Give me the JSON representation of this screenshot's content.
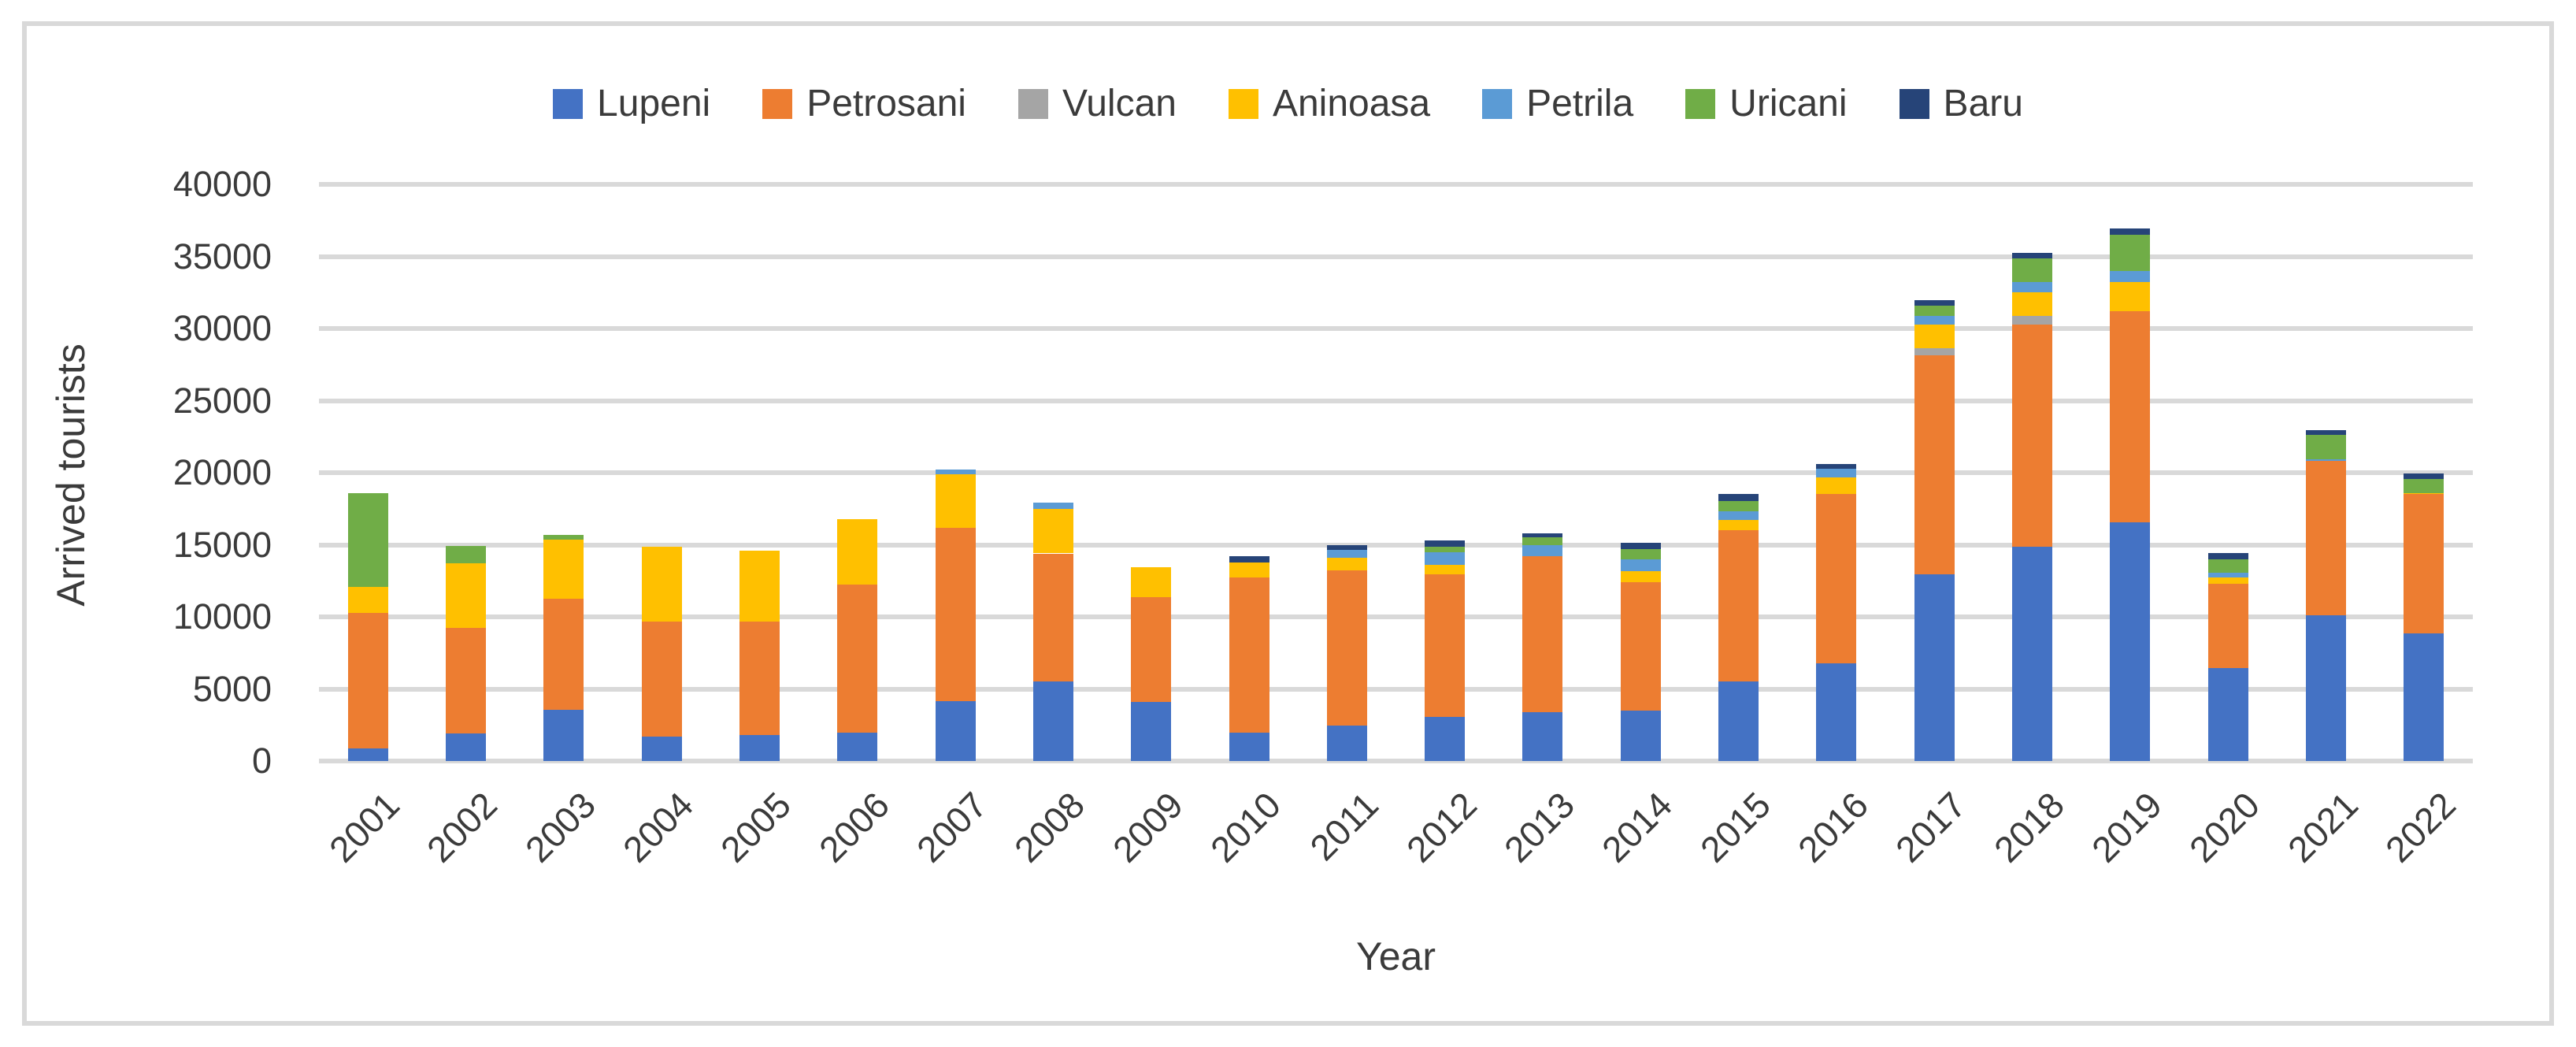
{
  "chart_data": {
    "type": "bar",
    "stacked": true,
    "title": "",
    "xlabel": "Year",
    "ylabel": "Arrived tourists",
    "ylim": [
      0,
      40000
    ],
    "yticks": [
      0,
      5000,
      10000,
      15000,
      20000,
      25000,
      30000,
      35000,
      40000
    ],
    "grid": true,
    "grid_color": "#d9d9d9",
    "text_color": "#3b3b3b",
    "legend_position": "top",
    "categories": [
      "2001",
      "2002",
      "2003",
      "2004",
      "2005",
      "2006",
      "2007",
      "2008",
      "2009",
      "2010",
      "2011",
      "2012",
      "2013",
      "2014",
      "2015",
      "2016",
      "2017",
      "2018",
      "2019",
      "2020",
      "2021",
      "2022"
    ],
    "series": [
      {
        "name": "Lupeni",
        "color": "#4472C4",
        "values": [
          900,
          1900,
          3550,
          1700,
          1800,
          1950,
          4150,
          5500,
          4100,
          1950,
          2450,
          3050,
          3400,
          3500,
          5500,
          6800,
          12950,
          14850,
          16550,
          6450,
          10100,
          8850
        ]
      },
      {
        "name": "Petrosani",
        "color": "#ED7D31",
        "values": [
          9400,
          7350,
          7700,
          7950,
          7900,
          10300,
          12000,
          8900,
          7250,
          10800,
          10800,
          9900,
          10800,
          8900,
          10500,
          11700,
          15200,
          15450,
          14650,
          5850,
          10700,
          9650
        ]
      },
      {
        "name": "Vulcan",
        "color": "#A5A5A5",
        "values": [
          0,
          0,
          0,
          0,
          0,
          0,
          0,
          0,
          0,
          0,
          0,
          0,
          0,
          0,
          0,
          0,
          500,
          600,
          0,
          0,
          0,
          0
        ]
      },
      {
        "name": "Aninoasa",
        "color": "#FFC000",
        "values": [
          1800,
          4450,
          4100,
          5200,
          4900,
          4500,
          3750,
          3100,
          2100,
          1000,
          850,
          650,
          0,
          750,
          700,
          1200,
          1600,
          1600,
          2000,
          450,
          0,
          100
        ]
      },
      {
        "name": "Petrila",
        "color": "#5B9BD5",
        "values": [
          0,
          0,
          0,
          0,
          0,
          0,
          300,
          400,
          0,
          0,
          550,
          900,
          750,
          850,
          650,
          550,
          600,
          700,
          800,
          300,
          150,
          0
        ]
      },
      {
        "name": "Uricani",
        "color": "#70AD47",
        "values": [
          6500,
          1200,
          350,
          0,
          0,
          0,
          0,
          0,
          0,
          0,
          0,
          350,
          550,
          700,
          700,
          0,
          750,
          1650,
          2500,
          950,
          1650,
          950
        ]
      },
      {
        "name": "Baru",
        "color": "#264478",
        "values": [
          0,
          0,
          0,
          0,
          0,
          0,
          0,
          0,
          0,
          450,
          350,
          450,
          300,
          450,
          450,
          350,
          350,
          400,
          450,
          450,
          350,
          400
        ]
      }
    ]
  }
}
